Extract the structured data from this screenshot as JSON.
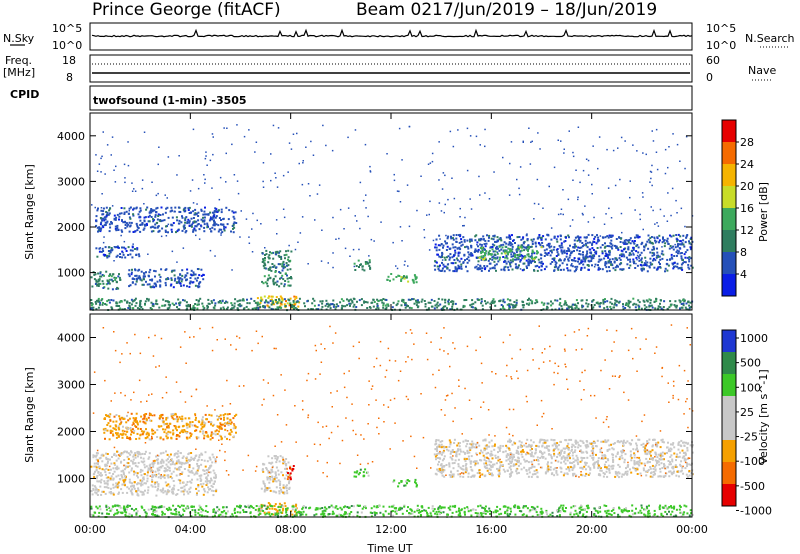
{
  "header": {
    "site": "Prince George (fitACF)",
    "beam": "Beam 02",
    "date_range": "17/Jun/2019 – 18/Jun/2019"
  },
  "panels": {
    "nsky": {
      "label": "N.Sky",
      "right_label": "N.Search",
      "top_tick_left": "10^5",
      "bottom_tick_left": "10^0",
      "top_tick_right": "10^5",
      "bottom_tick_right": "10^0"
    },
    "freq": {
      "label_line1": "Freq.",
      "label_line2": "[MHz]",
      "right_label": "Nave",
      "top_tick_left": "18",
      "bottom_tick_left": "8",
      "top_tick_right": "60",
      "bottom_tick_right": "0"
    },
    "cpid": {
      "label": "CPID",
      "mode": "twofsound (1-min) -3505"
    }
  },
  "colors": {
    "power": [
      "#0a1ee6",
      "#2550b8",
      "#2f7d5f",
      "#3da95d",
      "#c8dc28",
      "#f5b400",
      "#f56b00",
      "#e60000"
    ],
    "velocity": [
      "#e60000",
      "#f56b00",
      "#f5a000",
      "#c8c8c8",
      "#c8c8c8",
      "#3cc828",
      "#2f8a4a",
      "#1e37d2"
    ],
    "gs": "#c8c8c8"
  },
  "chart_data": [
    {
      "type": "heatmap",
      "name": "power-panel",
      "ylabel": "Slant Range [km]",
      "xlabel": "",
      "xlim": [
        "00:00",
        "24:00"
      ],
      "ylim": [
        180,
        4500
      ],
      "yticks": [
        "1000",
        "2000",
        "3000",
        "4000"
      ],
      "colorbar": {
        "label": "Power [dB]",
        "range": [
          0,
          32
        ],
        "ticks": [
          "4",
          "8",
          "12",
          "16",
          "20",
          "24",
          "28"
        ]
      },
      "regions": [
        {
          "t": [
            0.2,
            5.8
          ],
          "r": [
            1900,
            2450
          ],
          "c": 1
        },
        {
          "t": [
            0.2,
            2.0
          ],
          "r": [
            1350,
            1600
          ],
          "c": 1
        },
        {
          "t": [
            0.0,
            1.2
          ],
          "r": [
            650,
            1050
          ],
          "c": 2
        },
        {
          "t": [
            1.5,
            4.5
          ],
          "r": [
            700,
            1100
          ],
          "c": 1
        },
        {
          "t": [
            6.8,
            8.0
          ],
          "r": [
            700,
            1500
          ],
          "c": 2
        },
        {
          "t": [
            6.6,
            8.3
          ],
          "r": [
            250,
            500
          ],
          "c": 5
        },
        {
          "t": [
            10.5,
            11.2
          ],
          "r": [
            1050,
            1300
          ],
          "c": 2
        },
        {
          "t": [
            11.8,
            13.0
          ],
          "r": [
            800,
            1000
          ],
          "c": 3
        },
        {
          "t": [
            13.7,
            24.0
          ],
          "r": [
            1050,
            1850
          ],
          "c": 1
        },
        {
          "t": [
            15.5,
            18.0
          ],
          "r": [
            1300,
            1600
          ],
          "c": 3
        },
        {
          "t": [
            0.0,
            24.0
          ],
          "r": [
            200,
            450
          ],
          "c": 2
        }
      ]
    },
    {
      "type": "heatmap",
      "name": "velocity-panel",
      "ylabel": "Slant Range [km]",
      "xlabel": "Time UT",
      "xlim": [
        "00:00",
        "24:00"
      ],
      "ylim": [
        180,
        4500
      ],
      "xticks": [
        "00:00",
        "04:00",
        "08:00",
        "12:00",
        "16:00",
        "20:00",
        "00:00"
      ],
      "yticks": [
        "1000",
        "2000",
        "3000",
        "4000"
      ],
      "colorbar": {
        "label": "Velocity [m s^-1]",
        "ticks": [
          "1000",
          "500",
          "100",
          "25",
          "-25",
          "-100",
          "-500",
          "-1000"
        ]
      },
      "regions": [
        {
          "t": [
            0.5,
            5.8
          ],
          "r": [
            1850,
            2400
          ],
          "c": 2
        },
        {
          "t": [
            0.0,
            5.0
          ],
          "r": [
            650,
            1600
          ],
          "c": 3
        },
        {
          "t": [
            6.8,
            8.0
          ],
          "r": [
            700,
            1500
          ],
          "c": 3
        },
        {
          "t": [
            7.8,
            8.1
          ],
          "r": [
            1000,
            1300
          ],
          "c": 0
        },
        {
          "t": [
            6.6,
            8.3
          ],
          "r": [
            250,
            500
          ],
          "c": 2
        },
        {
          "t": [
            10.5,
            11.1
          ],
          "r": [
            1050,
            1250
          ],
          "c": 5
        },
        {
          "t": [
            12.0,
            13.0
          ],
          "r": [
            850,
            1000
          ],
          "c": 5
        },
        {
          "t": [
            13.7,
            24.0
          ],
          "r": [
            1050,
            1850
          ],
          "c": 3
        },
        {
          "t": [
            0.0,
            24.0
          ],
          "r": [
            200,
            450
          ],
          "c": 5
        }
      ]
    }
  ]
}
